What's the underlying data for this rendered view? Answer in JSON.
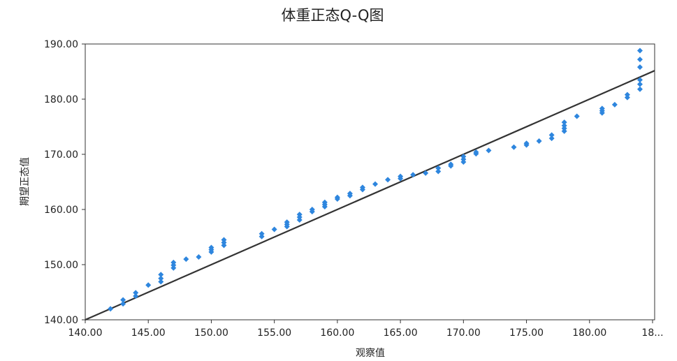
{
  "chart_data": {
    "type": "scatter",
    "title": "体重正态Q-Q图",
    "xlabel": "观察值",
    "ylabel": "期望正态值",
    "xlim": [
      140,
      185
    ],
    "ylim": [
      140,
      190
    ],
    "x_ticks": [
      "140.00",
      "145.00",
      "150.00",
      "155.00",
      "160.00",
      "165.00",
      "170.00",
      "175.00",
      "180.00",
      "18..."
    ],
    "y_ticks": [
      "140.00",
      "150.00",
      "160.00",
      "170.00",
      "180.00",
      "190.00"
    ],
    "grid": false,
    "legend": "none",
    "reference_line": {
      "x": [
        140,
        185
      ],
      "y": [
        140,
        185
      ]
    },
    "marker_color": "#2E86DE",
    "line_color": "#333333",
    "points": [
      {
        "x": 142,
        "y": 142.0
      },
      {
        "x": 143,
        "y": 142.9
      },
      {
        "x": 143,
        "y": 143.6
      },
      {
        "x": 144,
        "y": 144.3
      },
      {
        "x": 144,
        "y": 144.9
      },
      {
        "x": 145,
        "y": 146.3
      },
      {
        "x": 146,
        "y": 146.9
      },
      {
        "x": 146,
        "y": 147.5
      },
      {
        "x": 146,
        "y": 148.2
      },
      {
        "x": 147,
        "y": 149.4
      },
      {
        "x": 147,
        "y": 149.9
      },
      {
        "x": 147,
        "y": 150.4
      },
      {
        "x": 148,
        "y": 151.0
      },
      {
        "x": 149,
        "y": 151.4
      },
      {
        "x": 150,
        "y": 152.3
      },
      {
        "x": 150,
        "y": 152.7
      },
      {
        "x": 150,
        "y": 153.1
      },
      {
        "x": 151,
        "y": 153.5
      },
      {
        "x": 151,
        "y": 154.0
      },
      {
        "x": 151,
        "y": 154.5
      },
      {
        "x": 154,
        "y": 155.1
      },
      {
        "x": 154,
        "y": 155.6
      },
      {
        "x": 155,
        "y": 156.4
      },
      {
        "x": 156,
        "y": 156.9
      },
      {
        "x": 156,
        "y": 157.3
      },
      {
        "x": 156,
        "y": 157.7
      },
      {
        "x": 157,
        "y": 158.1
      },
      {
        "x": 157,
        "y": 158.6
      },
      {
        "x": 157,
        "y": 159.1
      },
      {
        "x": 158,
        "y": 159.6
      },
      {
        "x": 158,
        "y": 160.0
      },
      {
        "x": 159,
        "y": 160.5
      },
      {
        "x": 159,
        "y": 160.9
      },
      {
        "x": 159,
        "y": 161.3
      },
      {
        "x": 160,
        "y": 161.9
      },
      {
        "x": 160,
        "y": 162.2
      },
      {
        "x": 161,
        "y": 162.5
      },
      {
        "x": 161,
        "y": 162.9
      },
      {
        "x": 162,
        "y": 163.6
      },
      {
        "x": 162,
        "y": 164.0
      },
      {
        "x": 163,
        "y": 164.6
      },
      {
        "x": 164,
        "y": 165.4
      },
      {
        "x": 165,
        "y": 165.6
      },
      {
        "x": 165,
        "y": 166.0
      },
      {
        "x": 166,
        "y": 166.3
      },
      {
        "x": 167,
        "y": 166.6
      },
      {
        "x": 168,
        "y": 166.9
      },
      {
        "x": 168,
        "y": 167.5
      },
      {
        "x": 169,
        "y": 167.9
      },
      {
        "x": 169,
        "y": 168.2
      },
      {
        "x": 170,
        "y": 168.6
      },
      {
        "x": 170,
        "y": 169.1
      },
      {
        "x": 170,
        "y": 169.6
      },
      {
        "x": 171,
        "y": 170.1
      },
      {
        "x": 171,
        "y": 170.4
      },
      {
        "x": 172,
        "y": 170.7
      },
      {
        "x": 174,
        "y": 171.3
      },
      {
        "x": 175,
        "y": 171.7
      },
      {
        "x": 175,
        "y": 172.0
      },
      {
        "x": 176,
        "y": 172.4
      },
      {
        "x": 177,
        "y": 172.9
      },
      {
        "x": 177,
        "y": 173.5
      },
      {
        "x": 178,
        "y": 174.2
      },
      {
        "x": 178,
        "y": 174.7
      },
      {
        "x": 178,
        "y": 175.2
      },
      {
        "x": 178,
        "y": 175.8
      },
      {
        "x": 179,
        "y": 176.9
      },
      {
        "x": 181,
        "y": 177.5
      },
      {
        "x": 181,
        "y": 177.9
      },
      {
        "x": 181,
        "y": 178.3
      },
      {
        "x": 182,
        "y": 179.0
      },
      {
        "x": 183,
        "y": 180.3
      },
      {
        "x": 183,
        "y": 180.8
      },
      {
        "x": 184,
        "y": 181.8
      },
      {
        "x": 184,
        "y": 182.7
      },
      {
        "x": 184,
        "y": 183.5
      },
      {
        "x": 184,
        "y": 185.8
      },
      {
        "x": 184,
        "y": 187.2
      },
      {
        "x": 184,
        "y": 188.8
      }
    ]
  }
}
